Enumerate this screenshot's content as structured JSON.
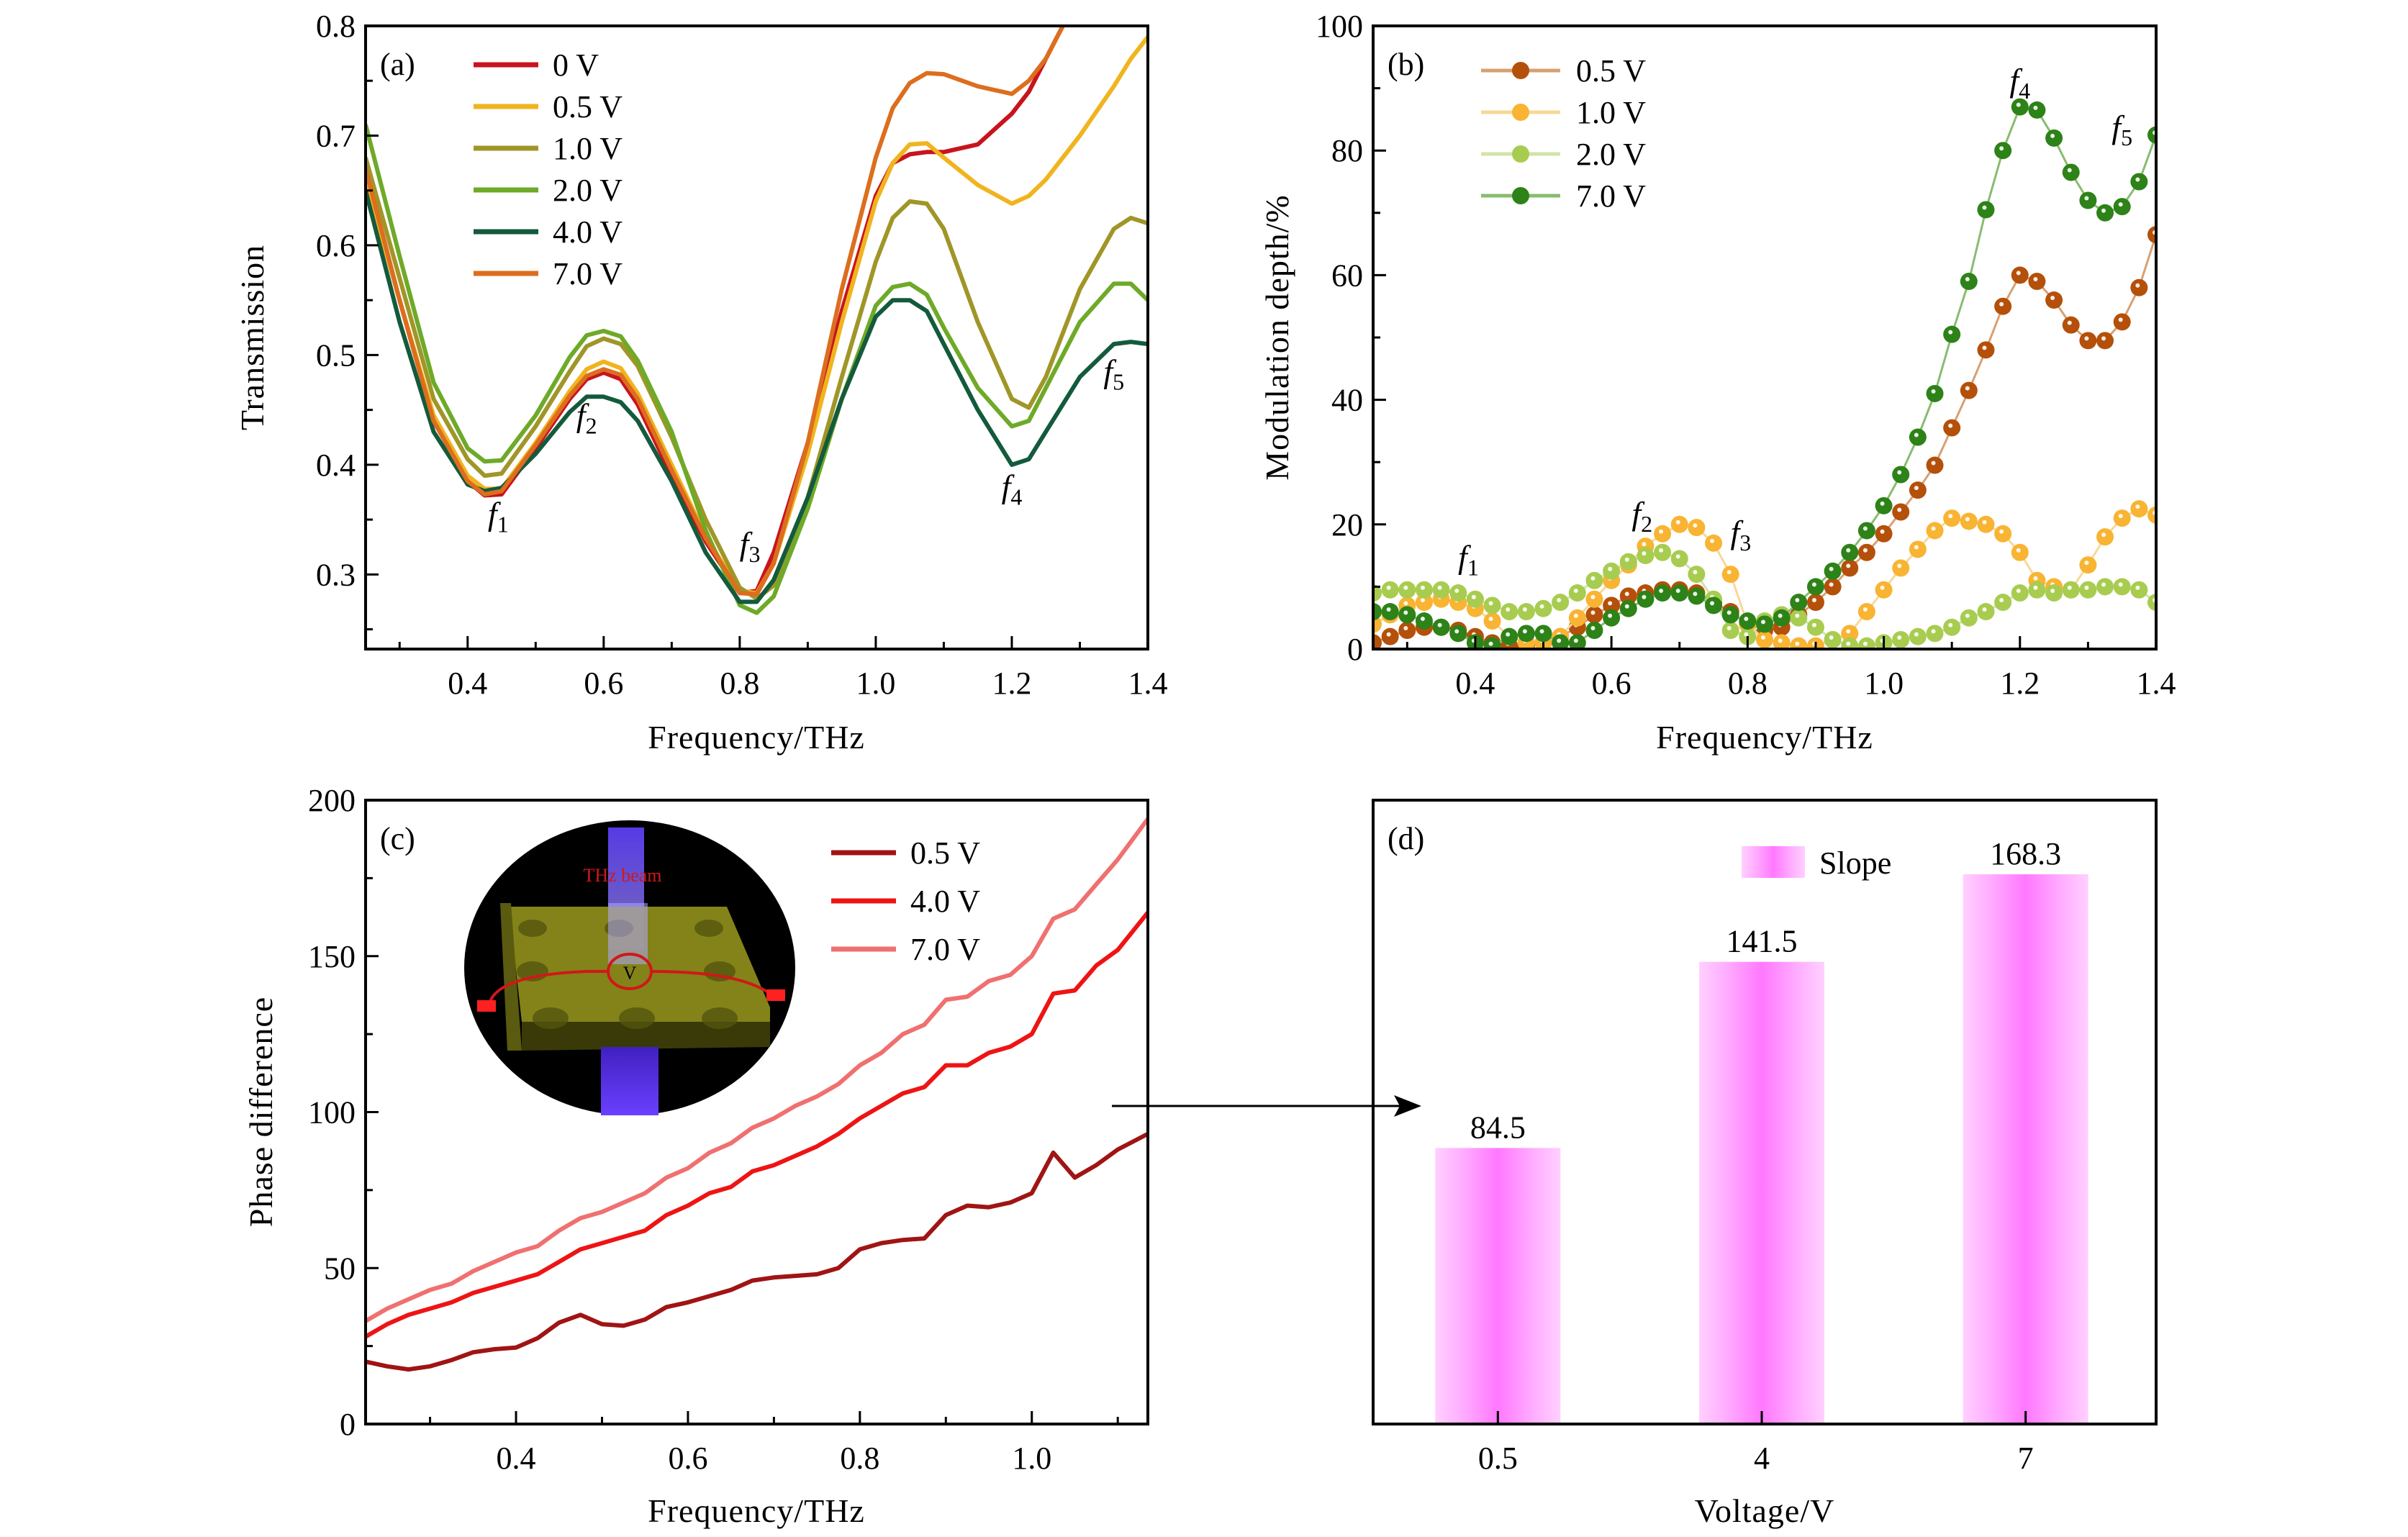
{
  "chart_data": [
    {
      "id": "a",
      "type": "line",
      "panel_label": "(a)",
      "title": "",
      "xlabel": "Frequency/THz",
      "ylabel": "Transmission",
      "xlim": [
        0.25,
        1.4
      ],
      "ylim": [
        0.232,
        0.8
      ],
      "xticks": [
        0.4,
        0.6,
        0.8,
        1.0,
        1.2,
        1.4
      ],
      "xtick_labels": [
        "0.4",
        "0.6",
        "0.8",
        "1.0",
        "1.2",
        "1.4"
      ],
      "yticks": [
        0.3,
        0.4,
        0.5,
        0.6,
        0.7,
        0.8
      ],
      "ytick_labels": [
        "0.3",
        "0.4",
        "0.5",
        "0.6",
        "0.7",
        "0.8"
      ],
      "grid": false,
      "legend_position": "top-left",
      "x": [
        0.25,
        0.3,
        0.35,
        0.4,
        0.425,
        0.45,
        0.5,
        0.55,
        0.575,
        0.6,
        0.625,
        0.65,
        0.7,
        0.75,
        0.8,
        0.825,
        0.85,
        0.9,
        0.95,
        1.0,
        1.025,
        1.05,
        1.075,
        1.1,
        1.15,
        1.2,
        1.225,
        1.25,
        1.3,
        1.35,
        1.375,
        1.4
      ],
      "series": [
        {
          "name": "0 V",
          "color": "#c8141e",
          "values": [
            0.66,
            0.55,
            0.44,
            0.385,
            0.372,
            0.373,
            0.415,
            0.46,
            0.478,
            0.484,
            0.478,
            0.455,
            0.39,
            0.33,
            0.283,
            0.285,
            0.32,
            0.42,
            0.54,
            0.645,
            0.675,
            0.683,
            0.685,
            0.685,
            0.692,
            0.72,
            0.74,
            0.77,
            0.83,
            0.89,
            0.92,
            0.95
          ]
        },
        {
          "name": "0.5 V",
          "color": "#f0b41e",
          "values": [
            0.66,
            0.55,
            0.445,
            0.39,
            0.378,
            0.378,
            0.42,
            0.467,
            0.487,
            0.494,
            0.488,
            0.465,
            0.4,
            0.335,
            0.285,
            0.283,
            0.31,
            0.41,
            0.53,
            0.64,
            0.675,
            0.692,
            0.693,
            0.68,
            0.655,
            0.638,
            0.645,
            0.66,
            0.7,
            0.745,
            0.77,
            0.79
          ]
        },
        {
          "name": "1.0 V",
          "color": "#a09628",
          "values": [
            0.68,
            0.57,
            0.46,
            0.405,
            0.39,
            0.392,
            0.435,
            0.485,
            0.508,
            0.515,
            0.51,
            0.49,
            0.425,
            0.35,
            0.288,
            0.278,
            0.29,
            0.37,
            0.48,
            0.585,
            0.625,
            0.64,
            0.638,
            0.615,
            0.53,
            0.46,
            0.452,
            0.48,
            0.56,
            0.615,
            0.625,
            0.62
          ]
        },
        {
          "name": "2.0 V",
          "color": "#6eaa28",
          "values": [
            0.71,
            0.59,
            0.475,
            0.415,
            0.403,
            0.404,
            0.445,
            0.498,
            0.518,
            0.522,
            0.517,
            0.495,
            0.43,
            0.34,
            0.272,
            0.265,
            0.28,
            0.36,
            0.46,
            0.545,
            0.562,
            0.565,
            0.555,
            0.525,
            0.47,
            0.435,
            0.44,
            0.47,
            0.53,
            0.565,
            0.565,
            0.55
          ]
        },
        {
          "name": "4.0 V",
          "color": "#145a3c",
          "values": [
            0.65,
            0.53,
            0.43,
            0.382,
            0.376,
            0.379,
            0.41,
            0.448,
            0.462,
            0.462,
            0.457,
            0.44,
            0.385,
            0.32,
            0.275,
            0.275,
            0.295,
            0.37,
            0.46,
            0.535,
            0.55,
            0.55,
            0.54,
            0.51,
            0.45,
            0.4,
            0.405,
            0.43,
            0.48,
            0.51,
            0.512,
            0.51
          ]
        },
        {
          "name": "7.0 V",
          "color": "#dc6e1e",
          "values": [
            0.67,
            0.55,
            0.44,
            0.385,
            0.373,
            0.376,
            0.418,
            0.463,
            0.481,
            0.487,
            0.482,
            0.46,
            0.395,
            0.333,
            0.283,
            0.282,
            0.31,
            0.42,
            0.56,
            0.68,
            0.725,
            0.748,
            0.757,
            0.756,
            0.745,
            0.738,
            0.75,
            0.77,
            0.83,
            0.9,
            0.93,
            0.96
          ]
        }
      ],
      "annotations": [
        {
          "text": "f",
          "sub": "1",
          "x": 0.445,
          "y": 0.345
        },
        {
          "text": "f",
          "sub": "2",
          "x": 0.575,
          "y": 0.435
        },
        {
          "text": "f",
          "sub": "3",
          "x": 0.815,
          "y": 0.318
        },
        {
          "text": "f",
          "sub": "4",
          "x": 1.2,
          "y": 0.37
        },
        {
          "text": "f",
          "sub": "5",
          "x": 1.35,
          "y": 0.475
        }
      ]
    },
    {
      "id": "b",
      "type": "line",
      "panel_label": "(b)",
      "title": "",
      "xlabel": "Frequency/THz",
      "ylabel": "Modulation depth/%",
      "xlim": [
        0.25,
        1.4
      ],
      "ylim": [
        0,
        100
      ],
      "xticks": [
        0.4,
        0.6,
        0.8,
        1.0,
        1.2,
        1.4
      ],
      "xtick_labels": [
        "0.4",
        "0.6",
        "0.8",
        "1.0",
        "1.2",
        "1.4"
      ],
      "yticks": [
        0,
        20,
        40,
        60,
        80,
        100
      ],
      "ytick_labels": [
        "0",
        "20",
        "40",
        "60",
        "80",
        "100"
      ],
      "grid": false,
      "legend_position": "top-left",
      "markers": "sphere",
      "x": [
        0.25,
        0.275,
        0.3,
        0.325,
        0.35,
        0.375,
        0.4,
        0.425,
        0.45,
        0.475,
        0.5,
        0.525,
        0.55,
        0.575,
        0.6,
        0.625,
        0.65,
        0.675,
        0.7,
        0.725,
        0.75,
        0.775,
        0.8,
        0.825,
        0.85,
        0.875,
        0.9,
        0.925,
        0.95,
        0.975,
        1.0,
        1.025,
        1.05,
        1.075,
        1.1,
        1.125,
        1.15,
        1.175,
        1.2,
        1.225,
        1.25,
        1.275,
        1.3,
        1.325,
        1.35,
        1.375,
        1.4
      ],
      "series": [
        {
          "name": "0.5 V",
          "color": "#b4500a",
          "line_color": "#d8a070",
          "values": [
            1,
            2,
            3,
            3.5,
            3.5,
            3,
            2,
            1,
            0.5,
            0.5,
            1,
            2,
            3.5,
            5.5,
            7,
            8.5,
            9,
            9.5,
            9.5,
            9,
            7.5,
            6,
            4,
            3,
            3.5,
            5.5,
            7.5,
            10,
            13,
            15.5,
            18.5,
            22,
            25.5,
            29.5,
            35.5,
            41.5,
            48,
            55,
            60,
            59,
            56,
            52,
            49.5,
            49.5,
            52.5,
            58,
            66.5
          ]
        },
        {
          "name": "1.0 V",
          "color": "#f8b432",
          "line_color": "#f8d898",
          "values": [
            4,
            5.5,
            7,
            7.5,
            8,
            7.5,
            6.5,
            4.5,
            2,
            1,
            1,
            2,
            5,
            8,
            11,
            13.5,
            16.5,
            18.5,
            20,
            19.5,
            17,
            12,
            4,
            1.5,
            1,
            0.5,
            0.5,
            1.5,
            2.5,
            6,
            9.5,
            13,
            16,
            19,
            21,
            20.5,
            20,
            18.5,
            15.5,
            11,
            10,
            9.5,
            13.5,
            18,
            21,
            22.5,
            21.5
          ]
        },
        {
          "name": "2.0 V",
          "color": "#a8cc50",
          "line_color": "#d0e4a8",
          "values": [
            9,
            9.5,
            9.5,
            9.5,
            9.5,
            9,
            8,
            7,
            6,
            6,
            6.5,
            7.5,
            9,
            11,
            12.5,
            14,
            15,
            15.5,
            14.5,
            12,
            8,
            3,
            2,
            4.5,
            5.5,
            5,
            3.5,
            1.5,
            0.5,
            0.5,
            1,
            1.5,
            2,
            2.5,
            3.5,
            5,
            6,
            7.5,
            9,
            9.5,
            9,
            9.5,
            9.5,
            10,
            10,
            9.5,
            7.5
          ]
        },
        {
          "name": "7.0 V",
          "color": "#2d8218",
          "line_color": "#88bc70",
          "values": [
            6,
            6,
            5.5,
            4.5,
            3.5,
            2.5,
            1,
            0.5,
            2,
            2.5,
            2.5,
            1,
            1,
            3,
            5,
            6.5,
            8,
            9,
            9,
            8.5,
            7,
            5.5,
            4.5,
            4,
            5,
            7.5,
            10,
            12.5,
            15.5,
            19,
            23,
            28,
            34,
            41,
            50.5,
            59,
            70.5,
            80,
            87,
            86.5,
            82,
            76.5,
            72,
            70,
            71,
            75,
            82.5
          ]
        }
      ],
      "annotations": [
        {
          "text": "f",
          "sub": "1",
          "x": 0.39,
          "y": 13
        },
        {
          "text": "f",
          "sub": "2",
          "x": 0.645,
          "y": 20
        },
        {
          "text": "f",
          "sub": "3",
          "x": 0.79,
          "y": 17
        },
        {
          "text": "f",
          "sub": "4",
          "x": 1.2,
          "y": 89.5
        },
        {
          "text": "f",
          "sub": "5",
          "x": 1.35,
          "y": 82
        }
      ]
    },
    {
      "id": "c",
      "type": "line",
      "panel_label": "(c)",
      "title": "",
      "xlabel": "Frequency/THz",
      "ylabel": "Phase difference",
      "xlim": [
        0.225,
        1.135
      ],
      "ylim": [
        0,
        200
      ],
      "xticks": [
        0.4,
        0.6,
        0.8,
        1.0
      ],
      "xtick_labels": [
        "0.4",
        "0.6",
        "0.8",
        "1.0"
      ],
      "yticks": [
        0,
        50,
        100,
        150,
        200
      ],
      "ytick_labels": [
        "0",
        "50",
        "100",
        "150",
        "200"
      ],
      "grid": false,
      "legend_position": "top-right",
      "x": [
        0.225,
        0.25,
        0.275,
        0.3,
        0.325,
        0.35,
        0.375,
        0.4,
        0.425,
        0.45,
        0.475,
        0.5,
        0.525,
        0.55,
        0.575,
        0.6,
        0.625,
        0.65,
        0.675,
        0.7,
        0.725,
        0.75,
        0.775,
        0.8,
        0.825,
        0.85,
        0.875,
        0.9,
        0.925,
        0.95,
        0.975,
        1.0,
        1.025,
        1.05,
        1.075,
        1.1,
        1.135
      ],
      "series": [
        {
          "name": "0.5 V",
          "color": "#a01414",
          "values": [
            20,
            18.5,
            17.5,
            18.5,
            20.5,
            23,
            24,
            24.5,
            27.5,
            32.5,
            35,
            32,
            31.5,
            33.5,
            37.5,
            39,
            41,
            43,
            46,
            47,
            47.5,
            48,
            50,
            56,
            58,
            59,
            59.5,
            67,
            70,
            69.5,
            71,
            74,
            87,
            79,
            83,
            88,
            93
          ]
        },
        {
          "name": "4.0 V",
          "color": "#ee1414",
          "values": [
            28,
            32,
            35,
            37,
            39,
            42,
            44,
            46,
            48,
            52,
            56,
            58,
            60,
            62,
            67,
            70,
            74,
            76,
            81,
            83,
            86,
            89,
            93,
            98,
            102,
            106,
            108,
            115,
            115,
            119,
            121,
            125,
            138,
            139,
            147,
            152,
            164
          ]
        },
        {
          "name": "7.0 V",
          "color": "#f07070",
          "values": [
            33,
            37,
            40,
            43,
            45,
            49,
            52,
            55,
            57,
            62,
            66,
            68,
            71,
            74,
            79,
            82,
            87,
            90,
            95,
            98,
            102,
            105,
            109,
            115,
            119,
            125,
            128,
            136,
            137,
            142,
            144,
            150,
            162,
            165,
            173,
            181,
            194
          ]
        }
      ],
      "inset": {
        "description": "device schematic with THz beam",
        "beam_label": "THz beam",
        "voltage_label": "V"
      }
    },
    {
      "id": "d",
      "type": "bar",
      "panel_label": "(d)",
      "title": "",
      "xlabel": "Voltage/V",
      "ylabel": "",
      "categories": [
        "0.5",
        "4",
        "7"
      ],
      "values": [
        84.5,
        141.5,
        168.3
      ],
      "data_labels": [
        "84.5",
        "141.5",
        "168.3"
      ],
      "ylim": [
        0,
        191
      ],
      "yticks": [],
      "grid": false,
      "legend_position": "top-center",
      "legend": [
        "Slope"
      ],
      "bar_colors": {
        "edge": "#ffc8ff",
        "center": "#ff78ff"
      }
    }
  ],
  "arrow": {
    "from_panel": "c",
    "to_panel": "d",
    "meaning": "slope of 0.5 V curve maps to bar 84.5"
  }
}
